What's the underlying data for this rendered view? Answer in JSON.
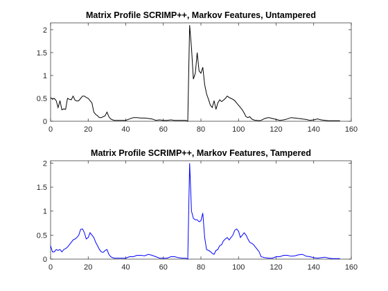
{
  "chart_data": [
    {
      "type": "line",
      "title": "Matrix Profile SCRIMP++, Markov Features, Untampered",
      "xlabel": "",
      "ylabel": "",
      "xlim": [
        0,
        160
      ],
      "ylim": [
        0,
        2.15
      ],
      "xticks": [
        0,
        20,
        40,
        60,
        80,
        100,
        120,
        140,
        160
      ],
      "yticks": [
        0,
        0.5,
        1,
        1.5,
        2
      ],
      "grid": false,
      "color": "#000000",
      "series": [
        {
          "x": [
            0,
            1,
            2,
            3,
            4,
            5,
            6,
            7,
            8,
            9,
            10,
            11,
            12,
            13,
            14,
            15,
            16,
            17,
            18,
            19,
            20,
            21,
            22,
            23,
            24,
            25,
            26,
            27,
            28,
            29,
            30,
            31,
            32,
            33,
            34,
            35,
            36,
            38,
            40,
            42,
            44,
            46,
            48,
            50,
            52,
            54,
            56,
            58,
            60,
            62,
            64,
            66,
            68,
            70,
            72,
            73,
            74,
            75,
            76,
            77,
            78,
            79,
            80,
            81,
            82,
            83,
            84,
            85,
            86,
            87,
            88,
            89,
            90,
            91,
            92,
            93,
            94,
            95,
            96,
            97,
            98,
            99,
            100,
            101,
            102,
            103,
            104,
            105,
            106,
            107,
            108,
            109,
            110,
            111,
            112,
            114,
            116,
            118,
            120,
            122,
            124,
            126,
            128,
            130,
            132,
            134,
            136,
            138,
            140,
            142,
            144,
            146,
            148,
            150,
            152,
            154
          ],
          "y": [
            0.52,
            0.48,
            0.5,
            0.45,
            0.3,
            0.45,
            0.25,
            0.27,
            0.26,
            0.5,
            0.48,
            0.47,
            0.55,
            0.46,
            0.44,
            0.45,
            0.5,
            0.55,
            0.55,
            0.52,
            0.5,
            0.45,
            0.4,
            0.2,
            0.15,
            0.12,
            0.08,
            0.08,
            0.1,
            0.12,
            0.2,
            0.1,
            0.05,
            0.03,
            0.02,
            0.02,
            0.02,
            0.02,
            0.02,
            0.05,
            0.08,
            0.08,
            0.07,
            0.07,
            0.06,
            0.05,
            0.02,
            0.03,
            0.02,
            0.02,
            0.03,
            0.02,
            0.02,
            0.02,
            0.02,
            0.0,
            2.1,
            1.6,
            0.92,
            1.05,
            1.5,
            1.1,
            1.05,
            1.18,
            0.8,
            0.6,
            0.48,
            0.35,
            0.3,
            0.45,
            0.26,
            0.4,
            0.47,
            0.43,
            0.46,
            0.5,
            0.55,
            0.52,
            0.5,
            0.48,
            0.45,
            0.4,
            0.35,
            0.3,
            0.25,
            0.18,
            0.1,
            0.08,
            0.1,
            0.05,
            0.03,
            0.02,
            0.02,
            0.01,
            0.02,
            0.06,
            0.08,
            0.06,
            0.04,
            0.02,
            0.03,
            0.05,
            0.08,
            0.07,
            0.06,
            0.05,
            0.04,
            0.02,
            0.03,
            0.05,
            0.03,
            0.02,
            0.01,
            0.01,
            0.01,
            0.01
          ]
        }
      ]
    },
    {
      "type": "line",
      "title": "Matrix Profile SCRIMP++, Markov Features, Tampered",
      "xlabel": "",
      "ylabel": "",
      "xlim": [
        0,
        160
      ],
      "ylim": [
        0,
        2.05
      ],
      "xticks": [
        0,
        20,
        40,
        60,
        80,
        100,
        120,
        140,
        160
      ],
      "yticks": [
        0,
        0.5,
        1,
        1.5,
        2
      ],
      "grid": false,
      "color": "#0000ff",
      "series": [
        {
          "x": [
            0,
            1,
            2,
            3,
            4,
            5,
            6,
            7,
            8,
            9,
            10,
            11,
            12,
            13,
            14,
            15,
            16,
            17,
            18,
            19,
            20,
            21,
            22,
            23,
            24,
            25,
            26,
            27,
            28,
            29,
            30,
            31,
            32,
            33,
            34,
            36,
            38,
            40,
            42,
            44,
            46,
            48,
            50,
            52,
            54,
            56,
            58,
            60,
            62,
            64,
            66,
            68,
            70,
            72,
            73,
            74,
            75,
            76,
            77,
            78,
            79,
            80,
            81,
            82,
            83,
            84,
            85,
            86,
            87,
            88,
            89,
            90,
            91,
            92,
            93,
            94,
            95,
            96,
            97,
            98,
            99,
            100,
            101,
            102,
            103,
            104,
            105,
            106,
            107,
            108,
            109,
            110,
            111,
            112,
            114,
            116,
            118,
            120,
            122,
            124,
            126,
            128,
            130,
            132,
            134,
            136,
            138,
            140,
            142,
            144,
            146,
            148,
            150,
            152,
            154
          ],
          "y": [
            0.28,
            0.15,
            0.15,
            0.2,
            0.18,
            0.2,
            0.15,
            0.2,
            0.22,
            0.25,
            0.3,
            0.35,
            0.4,
            0.42,
            0.45,
            0.5,
            0.62,
            0.63,
            0.55,
            0.42,
            0.45,
            0.55,
            0.5,
            0.45,
            0.35,
            0.28,
            0.2,
            0.15,
            0.14,
            0.18,
            0.2,
            0.1,
            0.05,
            0.03,
            0.02,
            0.02,
            0.02,
            0.02,
            0.05,
            0.05,
            0.08,
            0.08,
            0.07,
            0.1,
            0.08,
            0.05,
            0.02,
            0.02,
            0.02,
            0.05,
            0.05,
            0.03,
            0.02,
            0.02,
            0.0,
            2.0,
            1.0,
            0.85,
            0.82,
            0.82,
            0.78,
            0.8,
            0.96,
            0.45,
            0.2,
            0.18,
            0.16,
            0.12,
            0.1,
            0.18,
            0.2,
            0.28,
            0.3,
            0.38,
            0.42,
            0.45,
            0.4,
            0.45,
            0.5,
            0.6,
            0.63,
            0.58,
            0.45,
            0.5,
            0.55,
            0.5,
            0.42,
            0.35,
            0.33,
            0.3,
            0.25,
            0.2,
            0.15,
            0.05,
            0.03,
            0.02,
            0.02,
            0.05,
            0.05,
            0.08,
            0.08,
            0.06,
            0.07,
            0.09,
            0.1,
            0.06,
            0.05,
            0.03,
            0.02,
            0.03,
            0.04,
            0.02,
            0.01,
            0.01,
            0.01
          ]
        }
      ]
    }
  ]
}
